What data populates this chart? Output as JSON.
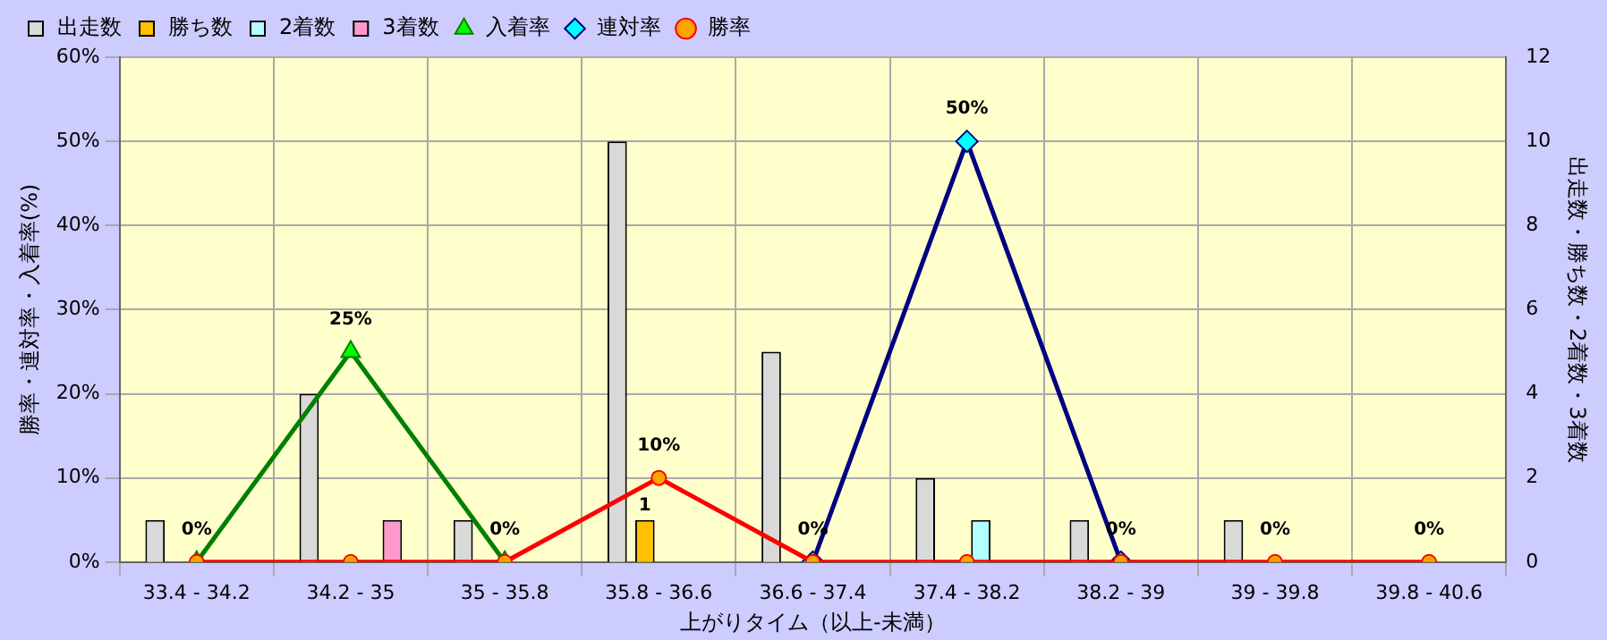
{
  "chart_data": {
    "type": "bar",
    "xlabel": "上がりタイム（以上-未満）",
    "ylabel": "勝率・連対率・入着率(%)",
    "y2label": "出走数・勝ち数・2着数・3着数",
    "categories": [
      "33.4 - 34.2",
      "34.2 - 35",
      "35 - 35.8",
      "35.8 - 36.6",
      "36.6 - 37.4",
      "37.4 - 38.2",
      "38.2 - 39",
      "39 - 39.8",
      "39.8 - 40.6"
    ],
    "series": [
      {
        "name": "出走数",
        "axis": "y2",
        "color": "#d9d9d9",
        "values": [
          1,
          4,
          1,
          10,
          5,
          2,
          1,
          1,
          0
        ]
      },
      {
        "name": "勝ち数",
        "axis": "y2",
        "color": "#ffc000",
        "values": [
          0,
          0,
          0,
          1,
          0,
          0,
          0,
          0,
          0
        ],
        "value_labels": [
          null,
          null,
          null,
          "1",
          null,
          null,
          null,
          null,
          null
        ]
      },
      {
        "name": "2着数",
        "axis": "y2",
        "color": "#b3ffff",
        "values": [
          0,
          0,
          0,
          0,
          0,
          1,
          0,
          0,
          0
        ]
      },
      {
        "name": "3着数",
        "axis": "y2",
        "color": "#ff99cc",
        "values": [
          0,
          1,
          0,
          0,
          0,
          0,
          0,
          0,
          0
        ]
      },
      {
        "name": "入着率",
        "type": "line",
        "color": "#008000",
        "marker": "triangle",
        "values": [
          0,
          25,
          0,
          null,
          null,
          null,
          null,
          null,
          null
        ],
        "value_labels": [
          "0%",
          "25%",
          "0%",
          null,
          null,
          null,
          null,
          null,
          null
        ]
      },
      {
        "name": "連対率",
        "type": "line",
        "color": "#000080",
        "marker": "diamond",
        "values": [
          null,
          null,
          null,
          null,
          0,
          50,
          0,
          null,
          null
        ],
        "value_labels": [
          null,
          null,
          null,
          null,
          null,
          "50%",
          null,
          null,
          null
        ]
      },
      {
        "name": "勝率",
        "type": "line",
        "color": "#ff0000",
        "marker": "circle",
        "values": [
          0,
          0,
          0,
          10,
          0,
          0,
          0,
          0,
          0
        ],
        "value_labels": [
          null,
          null,
          null,
          "10%",
          "0%",
          null,
          "0%",
          "0%",
          "0%"
        ]
      }
    ],
    "ylim": [
      0,
      60
    ],
    "yticks": [
      {
        "value": 0,
        "label": "0%"
      },
      {
        "value": 10,
        "label": "10%"
      },
      {
        "value": 20,
        "label": "20%"
      },
      {
        "value": 30,
        "label": "30%"
      },
      {
        "value": 40,
        "label": "40%"
      },
      {
        "value": 50,
        "label": "50%"
      },
      {
        "value": 60,
        "label": "60%"
      }
    ],
    "y2lim": [
      0,
      12
    ],
    "y2ticks": [
      0,
      2,
      4,
      6,
      8,
      10,
      12
    ],
    "grid": true,
    "legend": "top",
    "line_style": "solid"
  }
}
